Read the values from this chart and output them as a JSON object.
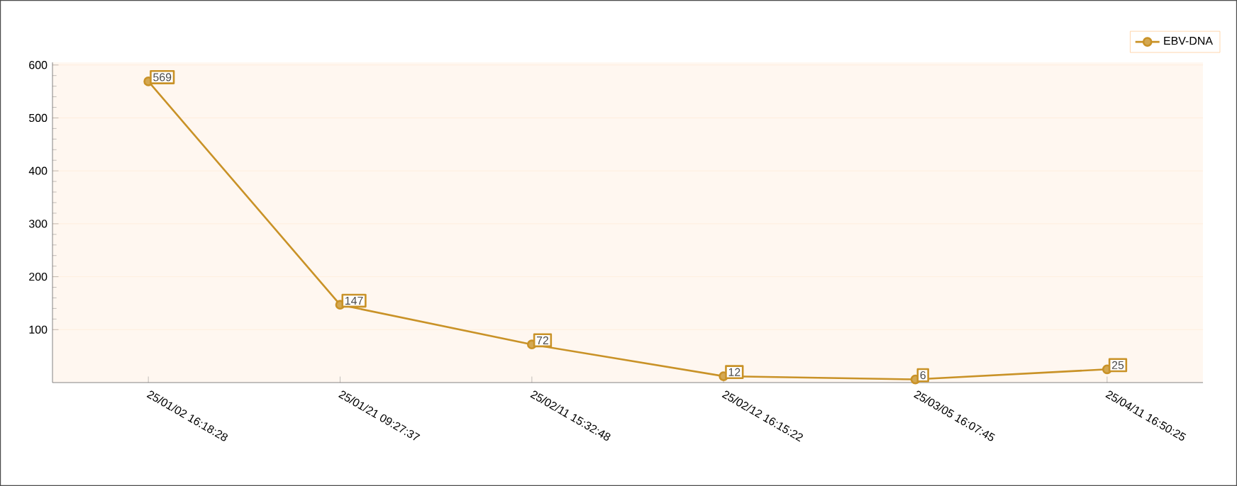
{
  "chart_data": {
    "type": "line",
    "categories": [
      "25/01/02 16:18:28",
      "25/01/21 09:27:37",
      "25/02/11 15:32:48",
      "25/02/12 16:15:22",
      "25/03/05 16:07:45",
      "25/04/11 16:50:25"
    ],
    "series": [
      {
        "name": "EBV-DNA",
        "color": "#c99227",
        "values": [
          569,
          147,
          72,
          12,
          6,
          25
        ]
      }
    ],
    "ylim": [
      0,
      605
    ],
    "yticks": [
      100,
      200,
      300,
      400,
      500,
      600
    ],
    "grid": "y",
    "legend": "top right",
    "marker": "circle",
    "line_style": "solid",
    "data_labels": true
  }
}
